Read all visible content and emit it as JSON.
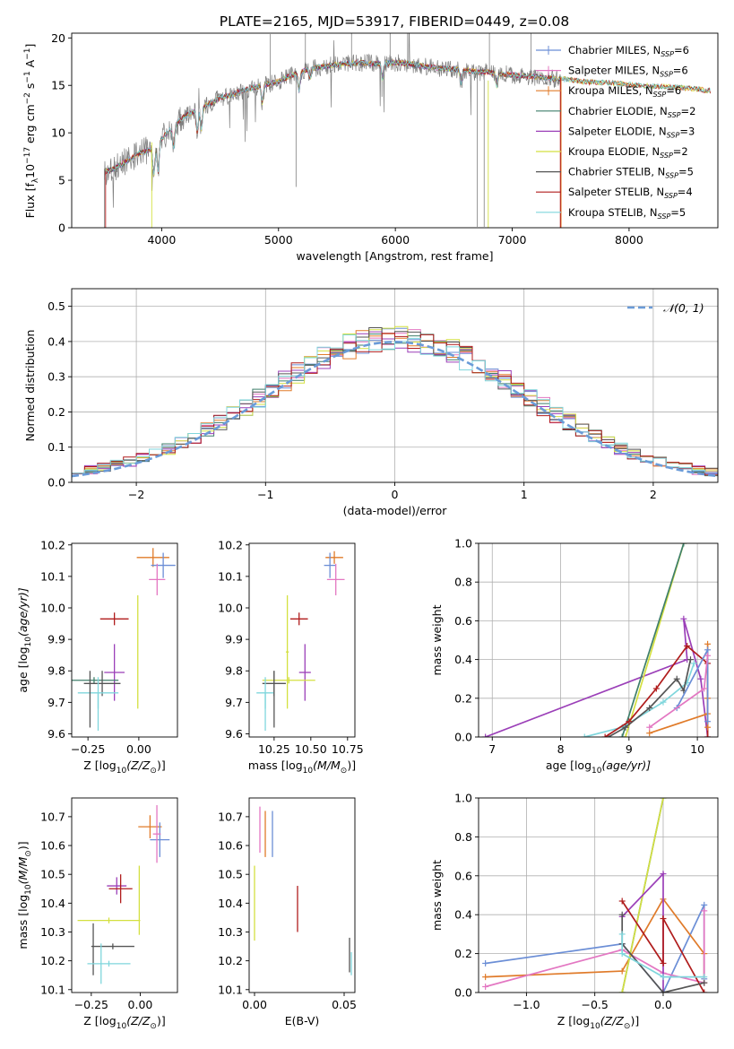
{
  "title": "PLATE=2165, MJD=53917, FIBERID=0449, z=0.08",
  "colors": {
    "Chabrier MILES": "#6b8ed6",
    "Salpeter MILES": "#e377c2",
    "Kroupa MILES": "#e07b2a",
    "Chabrier ELODIE": "#3f7f6b",
    "Salpeter ELODIE": "#9b3fb8",
    "Kroupa ELODIE": "#d4e040",
    "Chabrier STELIB": "#555555",
    "Salpeter STELIB": "#b01c1c",
    "Kroupa STELIB": "#7fd6dc",
    "normal": "#6a9bd8",
    "data": "#808080"
  },
  "chart_data": [
    {
      "id": "spectrum",
      "type": "line",
      "xlabel": "wavelength [Angstrom, rest frame]",
      "ylabel": "Flux [f",
      "xlim": [
        3230,
        8760
      ],
      "ylim": [
        0,
        20.5
      ],
      "xticks": [
        4000,
        5000,
        6000,
        7000,
        8000
      ],
      "yticks": [
        0,
        5,
        10,
        15,
        20
      ],
      "grid": false,
      "legend": "top-right",
      "legend_entries": [
        {
          "model": "Chabrier MILES",
          "label": "Chabrier MILES, N",
          "n": "=6"
        },
        {
          "model": "Salpeter MILES",
          "label": "Salpeter MILES, N",
          "n": "=6"
        },
        {
          "model": "Kroupa MILES",
          "label": "Kroupa MILES, N",
          "n": "=6"
        },
        {
          "model": "Chabrier ELODIE",
          "label": "Chabrier ELODIE, N",
          "n": "=2"
        },
        {
          "model": "Salpeter ELODIE",
          "label": "Salpeter ELODIE, N",
          "n": "=3"
        },
        {
          "model": "Kroupa ELODIE",
          "label": "Kroupa ELODIE, N",
          "n": "=2"
        },
        {
          "model": "Chabrier STELIB",
          "label": "Chabrier STELIB, N",
          "n": "=5"
        },
        {
          "model": "Salpeter STELIB",
          "label": "Salpeter STELIB, N",
          "n": "=4"
        },
        {
          "model": "Kroupa STELIB",
          "label": "Kroupa STELIB, N",
          "n": "=5"
        }
      ],
      "continuum": {
        "x": [
          3500,
          3600,
          3700,
          3800,
          3900,
          4000,
          4100,
          4200,
          4300,
          4400,
          4500,
          4600,
          4700,
          4800,
          4900,
          5000,
          5100,
          5200,
          5300,
          5400,
          5500,
          5600,
          5700,
          5800,
          5900,
          6000,
          6100,
          6200,
          6300,
          6400,
          6500,
          6600,
          6700,
          6800,
          6900,
          7000,
          7100,
          7200,
          7300,
          7400
        ],
        "y": [
          5.8,
          6.3,
          7.0,
          7.8,
          8.2,
          9.4,
          10.7,
          11.8,
          12.4,
          13.0,
          13.7,
          14.0,
          14.5,
          14.8,
          15.1,
          15.4,
          16.0,
          16.5,
          16.8,
          17.0,
          17.2,
          17.3,
          17.4,
          17.3,
          17.3,
          17.4,
          17.3,
          17.1,
          16.9,
          16.8,
          16.7,
          16.6,
          16.4,
          16.4,
          16.2,
          16.1,
          16.0,
          15.9,
          15.8,
          15.6
        ]
      },
      "model_tail": {
        "x": [
          7400,
          7500,
          7600,
          7700,
          7800,
          7900,
          8000,
          8100,
          8200,
          8300,
          8400,
          8500,
          8600,
          8700
        ],
        "y": [
          15.7,
          15.6,
          15.4,
          15.3,
          15.3,
          15.2,
          15.1,
          15.0,
          14.9,
          14.9,
          14.8,
          14.7,
          14.6,
          14.4
        ]
      }
    },
    {
      "id": "residuals",
      "type": "histogram",
      "xlabel": "(data-model)/error",
      "ylabel": "Normed distribution",
      "xlim": [
        -2.5,
        2.5
      ],
      "ylim": [
        0,
        0.55
      ],
      "xticks": [
        -2,
        -1,
        0,
        1,
        2
      ],
      "yticks": [
        0.0,
        0.1,
        0.2,
        0.3,
        0.4,
        0.5
      ],
      "grid": true,
      "legend": "top-right",
      "legend_label": "𝒩(0, 1)",
      "bin_width": 0.1,
      "normal": {
        "mean": 0,
        "sigma": 1
      }
    },
    {
      "id": "age-vs-Z",
      "type": "errorbar",
      "xlabel": "Z [log",
      "ylabel": "age  [log",
      "xlim": [
        -0.33,
        0.19
      ],
      "ylim": [
        9.59,
        10.205
      ],
      "xticks": [
        -0.25,
        0.0
      ],
      "yticks": [
        9.6,
        9.7,
        9.8,
        9.9,
        10.0,
        10.1,
        10.2
      ],
      "grid": false,
      "points": [
        {
          "model": "Kroupa MILES",
          "x": 0.07,
          "xerr": 0.08,
          "y": 10.16,
          "yerr": 0.03
        },
        {
          "model": "Chabrier MILES",
          "x": 0.12,
          "xerr": 0.06,
          "y": 10.135,
          "yerr": 0.04
        },
        {
          "model": "Salpeter MILES",
          "x": 0.09,
          "xerr": 0.04,
          "y": 10.09,
          "yerr": 0.05
        },
        {
          "model": "Kroupa ELODIE",
          "x": -0.005,
          "xerr": 0.005,
          "y": 9.86,
          "yerr": 0.18
        },
        {
          "model": "Salpeter STELIB",
          "x": -0.12,
          "xerr": 0.07,
          "y": 9.965,
          "yerr": 0.02
        },
        {
          "model": "Salpeter ELODIE",
          "x": -0.12,
          "xerr": 0.05,
          "y": 9.795,
          "yerr": 0.09
        },
        {
          "model": "Chabrier ELODIE",
          "x": -0.22,
          "xerr": 0.12,
          "y": 9.77,
          "yerr": 0.01
        },
        {
          "model": "Chabrier STELIB",
          "x": -0.18,
          "xerr": 0.09,
          "y": 9.76,
          "yerr": 0.04
        },
        {
          "model": "Kroupa STELIB",
          "x": -0.2,
          "xerr": 0.1,
          "y": 9.73,
          "yerr": 0.05
        },
        {
          "model": "Chabrier STELIB",
          "x": -0.24,
          "xerr": 0.005,
          "y": 9.71,
          "yerr": 0.09
        },
        {
          "model": "Kroupa STELIB",
          "x": -0.2,
          "xerr": 0.005,
          "y": 9.67,
          "yerr": 0.06
        }
      ]
    },
    {
      "id": "age-vs-mass",
      "type": "errorbar",
      "xlabel": "mass [log",
      "ylabel": "",
      "xlim": [
        10.08,
        10.8
      ],
      "ylim": [
        9.59,
        10.205
      ],
      "xticks": [
        10.25,
        10.5,
        10.75
      ],
      "yticks": [
        9.6,
        9.7,
        9.8,
        9.9,
        10.0,
        10.1,
        10.2
      ],
      "grid": false,
      "points": [
        {
          "model": "Kroupa MILES",
          "x": 10.66,
          "xerr": 0.06,
          "y": 10.16,
          "yerr": 0.02
        },
        {
          "model": "Chabrier MILES",
          "x": 10.63,
          "xerr": 0.04,
          "y": 10.135,
          "yerr": 0.04
        },
        {
          "model": "Salpeter MILES",
          "x": 10.67,
          "xerr": 0.06,
          "y": 10.09,
          "yerr": 0.05
        },
        {
          "model": "Kroupa ELODIE",
          "x": 10.34,
          "xerr": 0.01,
          "y": 9.86,
          "yerr": 0.18
        },
        {
          "model": "Salpeter STELIB",
          "x": 10.42,
          "xerr": 0.06,
          "y": 9.965,
          "yerr": 0.02
        },
        {
          "model": "Salpeter ELODIE",
          "x": 10.46,
          "xerr": 0.04,
          "y": 9.795,
          "yerr": 0.09
        },
        {
          "model": "Kroupa ELODIE",
          "x": 10.35,
          "xerr": 0.18,
          "y": 9.77,
          "yerr": 0.01
        },
        {
          "model": "Chabrier STELIB",
          "x": 10.25,
          "xerr": 0.08,
          "y": 9.76,
          "yerr": 0.04
        },
        {
          "model": "Kroupa STELIB",
          "x": 10.19,
          "xerr": 0.06,
          "y": 9.73,
          "yerr": 0.05
        },
        {
          "model": "Chabrier STELIB",
          "x": 10.25,
          "xerr": 0.005,
          "y": 9.71,
          "yerr": 0.09
        },
        {
          "model": "Kroupa STELIB",
          "x": 10.19,
          "xerr": 0.005,
          "y": 9.67,
          "yerr": 0.06
        }
      ]
    },
    {
      "id": "weight-vs-age",
      "type": "line",
      "xlabel": "age  [log",
      "ylabel": "mass weight",
      "xlim": [
        6.8,
        10.3
      ],
      "ylim": [
        0,
        1.0
      ],
      "xticks": [
        7,
        8,
        9,
        10
      ],
      "yticks": [
        0.0,
        0.2,
        0.4,
        0.6,
        0.8,
        1.0
      ],
      "grid": true,
      "series": [
        {
          "model": "Salpeter ELODIE",
          "x": [
            6.9,
            9.85,
            9.8,
            10.05,
            10.15
          ],
          "y": [
            0.0,
            0.4,
            0.61,
            0.3,
            0.0
          ]
        },
        {
          "model": "Kroupa ELODIE",
          "x": [
            8.95,
            9.8
          ],
          "y": [
            0.0,
            1.0
          ]
        },
        {
          "model": "Chabrier ELODIE",
          "x": [
            8.9,
            9.8
          ],
          "y": [
            0.0,
            1.0
          ]
        },
        {
          "model": "Kroupa STELIB",
          "x": [
            8.35,
            8.9,
            9.5,
            9.85,
            9.95
          ],
          "y": [
            0.0,
            0.05,
            0.18,
            0.28,
            0.38
          ]
        },
        {
          "model": "Chabrier STELIB",
          "x": [
            8.7,
            8.95,
            9.3,
            9.7,
            9.8,
            9.9
          ],
          "y": [
            0.0,
            0.05,
            0.15,
            0.3,
            0.24,
            0.4
          ]
        },
        {
          "model": "Salpeter STELIB",
          "x": [
            8.65,
            9.0,
            9.4,
            9.85,
            10.15,
            10.15
          ],
          "y": [
            0.0,
            0.08,
            0.25,
            0.47,
            0.38,
            0.0
          ]
        },
        {
          "model": "Kroupa MILES",
          "x": [
            9.3,
            10.15,
            10.15,
            10.15,
            10.15
          ],
          "y": [
            0.02,
            0.12,
            0.48,
            0.2,
            0.05
          ]
        },
        {
          "model": "Chabrier MILES",
          "x": [
            9.7,
            10.15,
            10.15
          ],
          "y": [
            0.15,
            0.45,
            0.08
          ]
        },
        {
          "model": "Salpeter MILES",
          "x": [
            9.3,
            10.1,
            10.15
          ],
          "y": [
            0.05,
            0.25,
            0.42
          ]
        }
      ]
    },
    {
      "id": "mass-vs-Z",
      "type": "errorbar",
      "xlabel": "Z [log",
      "ylabel": "mass [log",
      "xlim": [
        -0.35,
        0.19
      ],
      "ylim": [
        10.09,
        10.765
      ],
      "xticks": [
        -0.25,
        0.0
      ],
      "yticks": [
        10.1,
        10.2,
        10.3,
        10.4,
        10.5,
        10.6,
        10.7
      ],
      "grid": false,
      "points": [
        {
          "model": "Kroupa MILES",
          "x": 0.05,
          "xerr": 0.06,
          "y": 10.665,
          "yerr": 0.04
        },
        {
          "model": "Chabrier MILES",
          "x": 0.1,
          "xerr": 0.05,
          "y": 10.62,
          "yerr": 0.06
        },
        {
          "model": "Salpeter MILES",
          "x": 0.085,
          "xerr": 0.02,
          "y": 10.64,
          "yerr": 0.1
        },
        {
          "model": "Kroupa ELODIE",
          "x": -0.005,
          "xerr": 0.005,
          "y": 10.41,
          "yerr": 0.12
        },
        {
          "model": "Salpeter ELODIE",
          "x": -0.12,
          "xerr": 0.05,
          "y": 10.46,
          "yerr": 0.03
        },
        {
          "model": "Salpeter STELIB",
          "x": -0.1,
          "xerr": 0.06,
          "y": 10.45,
          "yerr": 0.05
        },
        {
          "model": "Kroupa ELODIE",
          "x": -0.16,
          "xerr": 0.16,
          "y": 10.34,
          "yerr": 0.01
        },
        {
          "model": "Chabrier STELIB",
          "x": -0.14,
          "xerr": 0.11,
          "y": 10.25,
          "yerr": 0.01
        },
        {
          "model": "Chabrier STELIB",
          "x": -0.24,
          "xerr": 0.005,
          "y": 10.24,
          "yerr": 0.09
        },
        {
          "model": "Kroupa STELIB",
          "x": -0.16,
          "xerr": 0.11,
          "y": 10.19,
          "yerr": 0.01
        },
        {
          "model": "Kroupa STELIB",
          "x": -0.2,
          "xerr": 0.005,
          "y": 10.19,
          "yerr": 0.07
        }
      ]
    },
    {
      "id": "mass-vs-ebv",
      "type": "errorbar",
      "xlabel": "E(B-V)",
      "ylabel": "",
      "xlim": [
        -0.003,
        0.056
      ],
      "ylim": [
        10.09,
        10.765
      ],
      "xticks": [
        0.0,
        0.05
      ],
      "yticks": [
        10.1,
        10.2,
        10.3,
        10.4,
        10.5,
        10.6,
        10.7
      ],
      "grid": false,
      "points": [
        {
          "model": "Salpeter MILES",
          "x": 0.003,
          "xerr": 0,
          "y": 10.655,
          "yerr": 0.08
        },
        {
          "model": "Kroupa MILES",
          "x": 0.006,
          "xerr": 0,
          "y": 10.64,
          "yerr": 0.08
        },
        {
          "model": "Chabrier MILES",
          "x": 0.01,
          "xerr": 0,
          "y": 10.64,
          "yerr": 0.08
        },
        {
          "model": "Kroupa ELODIE",
          "x": 0.0,
          "xerr": 0,
          "y": 10.4,
          "yerr": 0.13
        },
        {
          "model": "Salpeter STELIB",
          "x": 0.024,
          "xerr": 0,
          "y": 10.38,
          "yerr": 0.08
        },
        {
          "model": "Chabrier STELIB",
          "x": 0.053,
          "xerr": 0,
          "y": 10.22,
          "yerr": 0.06
        },
        {
          "model": "Kroupa STELIB",
          "x": 0.054,
          "xerr": 0,
          "y": 10.19,
          "yerr": 0.04
        }
      ]
    },
    {
      "id": "weight-vs-Z",
      "type": "line",
      "xlabel": "Z [log",
      "ylabel": "mass weight",
      "xlim": [
        -1.35,
        0.4
      ],
      "ylim": [
        0,
        1.0
      ],
      "xticks": [
        -1.0,
        -0.5,
        0.0
      ],
      "yticks": [
        0.0,
        0.2,
        0.4,
        0.6,
        0.8,
        1.0
      ],
      "grid": true,
      "series": [
        {
          "model": "Chabrier MILES",
          "x": [
            -1.3,
            -0.3,
            0.0,
            0.3,
            0.3
          ],
          "y": [
            0.15,
            0.25,
            0.0,
            0.45,
            0.07
          ]
        },
        {
          "model": "Kroupa MILES",
          "x": [
            -1.3,
            -0.3,
            0.0,
            0.3,
            0.3
          ],
          "y": [
            0.08,
            0.11,
            0.48,
            0.2,
            0.05
          ]
        },
        {
          "model": "Salpeter MILES",
          "x": [
            -1.3,
            -0.3,
            0.0,
            0.3,
            0.3
          ],
          "y": [
            0.03,
            0.22,
            0.1,
            0.05,
            0.42
          ]
        },
        {
          "model": "Chabrier ELODIE",
          "x": [
            -0.3,
            0.0
          ],
          "y": [
            0.0,
            1.0
          ]
        },
        {
          "model": "Kroupa ELODIE",
          "x": [
            -0.3,
            0.0
          ],
          "y": [
            0.0,
            1.0
          ]
        },
        {
          "model": "Salpeter ELODIE",
          "x": [
            -0.3,
            0.0,
            0.0
          ],
          "y": [
            0.39,
            0.61,
            0.0
          ]
        },
        {
          "model": "Salpeter STELIB",
          "x": [
            -0.3,
            0.0,
            0.0,
            0.3
          ],
          "y": [
            0.47,
            0.15,
            0.38,
            0.0
          ]
        },
        {
          "model": "Chabrier STELIB",
          "x": [
            -0.3,
            -0.3,
            0.0,
            0.3
          ],
          "y": [
            0.4,
            0.25,
            0.0,
            0.05
          ]
        },
        {
          "model": "Kroupa STELIB",
          "x": [
            -0.3,
            -0.3,
            0.0,
            0.3
          ],
          "y": [
            0.3,
            0.2,
            0.08,
            0.08
          ]
        }
      ]
    }
  ]
}
